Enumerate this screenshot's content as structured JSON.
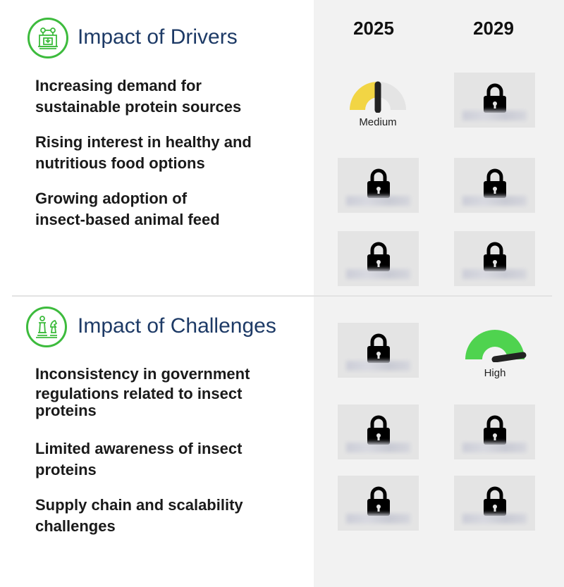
{
  "years": [
    "2025",
    "2029"
  ],
  "drivers": {
    "title": "Impact of Drivers",
    "icon": "machine-icon",
    "items": [
      {
        "line1": "Increasing demand for",
        "line2": "sustainable protein sources"
      },
      {
        "line1": "Rising interest in healthy and",
        "line2": "nutritious food options"
      },
      {
        "line1": "Growing adoption of",
        "line2": "insect-based animal feed"
      }
    ],
    "gauge_2025": {
      "label": "Medium",
      "color": "#f2d544",
      "level": 0.5
    }
  },
  "challenges": {
    "title": "Impact of Challenges",
    "icon": "chess-pieces-icon",
    "items": [
      {
        "line1": "Inconsistency in government",
        "line2": "regulations related to insect",
        "line3": "proteins"
      },
      {
        "line1": "Limited awareness of insect",
        "line2": "proteins"
      },
      {
        "line1": "Supply chain and scalability",
        "line2": "challenges"
      }
    ],
    "gauge_2029": {
      "label": "High",
      "color": "#4fd34f",
      "level": 0.9
    }
  },
  "colors": {
    "accent_green": "#3dbb3d",
    "title_navy": "#1d3a66",
    "panel_gray": "#f2f2f2"
  }
}
